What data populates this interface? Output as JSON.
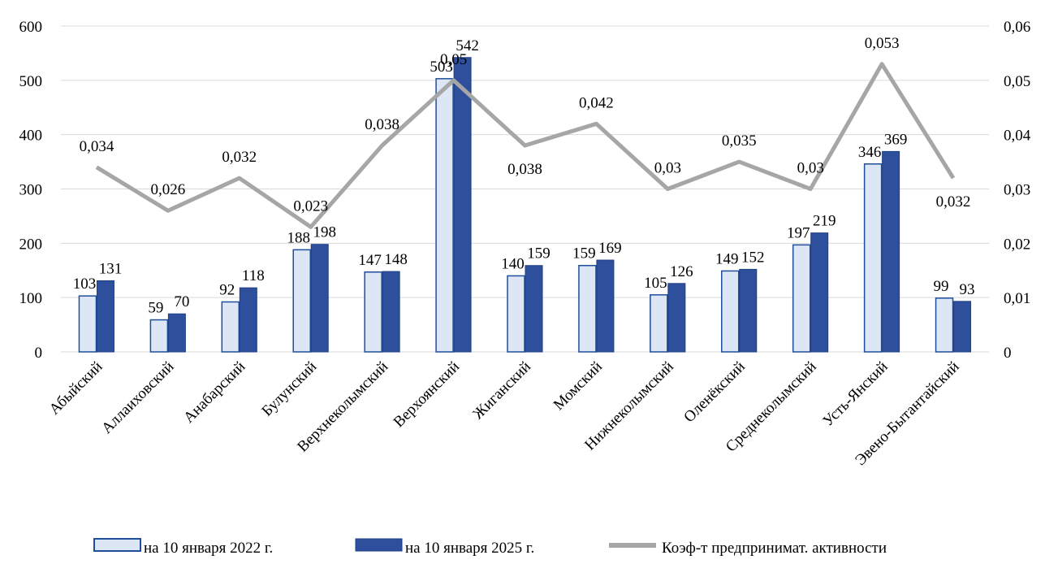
{
  "chart_data": {
    "type": "bar+line",
    "categories": [
      "Абыйский",
      "Аллаиховский",
      "Анабарский",
      "Булунский",
      "Верхнеколымский",
      "Верхоянский",
      "Жиганский",
      "Момский",
      "Нижнеколымский",
      "Оленёкский",
      "Среднеколымский",
      "Усть-Янский",
      "Эвено-Бытантайский"
    ],
    "series": [
      {
        "name": "на 10 января 2022 г.",
        "type": "bar",
        "axis": "left",
        "color": "#dce6f5",
        "border": "#1f4e9b",
        "values": [
          103,
          59,
          92,
          188,
          147,
          503,
          140,
          159,
          105,
          149,
          197,
          346,
          99
        ]
      },
      {
        "name": "на 10 января 2025 г.",
        "type": "bar",
        "axis": "left",
        "color": "#2e4f9c",
        "border": "#1f3f86",
        "values": [
          131,
          70,
          118,
          198,
          148,
          542,
          159,
          169,
          126,
          152,
          219,
          369,
          93
        ]
      },
      {
        "name": "Коэф-т предпринимат. активности",
        "type": "line",
        "axis": "right",
        "color": "#a6a6a6",
        "values": [
          0.034,
          0.026,
          0.032,
          0.023,
          0.038,
          0.05,
          0.038,
          0.042,
          0.03,
          0.035,
          0.03,
          0.053,
          0.032
        ],
        "labels": [
          "0,034",
          "0,026",
          "0,032",
          "0,023",
          "0,038",
          "0,05",
          "0,038",
          "0,042",
          "0,03",
          "0,035",
          "0,03",
          "0,053",
          "0,032"
        ]
      }
    ],
    "y_left": {
      "ylim": [
        0,
        600
      ],
      "ticks": [
        0,
        100,
        200,
        300,
        400,
        500,
        600
      ],
      "tick_labels": [
        "0",
        "100",
        "200",
        "300",
        "400",
        "500",
        "600"
      ]
    },
    "y_right": {
      "ylim": [
        0,
        0.06
      ],
      "ticks": [
        0,
        0.01,
        0.02,
        0.03,
        0.04,
        0.05,
        0.06
      ],
      "tick_labels": [
        "0",
        "0,01",
        "0,02",
        "0,03",
        "0,04",
        "0,05",
        "0,06"
      ]
    },
    "grid": true,
    "legend_position": "bottom"
  }
}
